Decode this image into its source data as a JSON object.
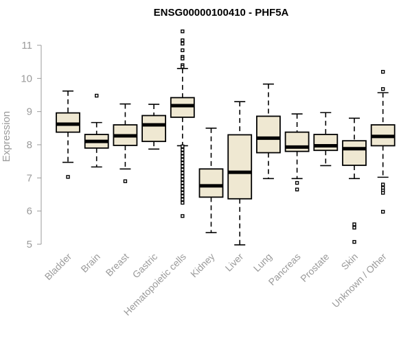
{
  "chart_data": {
    "type": "boxplot",
    "title": "ENSG00000100410 - PHF5A",
    "xlabel": "",
    "ylabel": "Expression",
    "ylim": [
      5,
      11
    ],
    "yticks": [
      5,
      6,
      7,
      8,
      9,
      10,
      11
    ],
    "categories": [
      "Bladder",
      "Brain",
      "Breast",
      "Gastric",
      "Hematopoietic cells",
      "Kidney",
      "Liver",
      "Lung",
      "Pancreas",
      "Prostate",
      "Skin",
      "Unknown / Other"
    ],
    "boxes": [
      {
        "name": "Bladder",
        "whisker_low": 7.47,
        "q1": 8.38,
        "median": 8.62,
        "q3": 8.96,
        "whisker_high": 9.62,
        "outliers": [
          7.03
        ]
      },
      {
        "name": "Brain",
        "whisker_low": 7.33,
        "q1": 7.9,
        "median": 8.1,
        "q3": 8.31,
        "whisker_high": 8.67,
        "outliers": [
          9.48
        ]
      },
      {
        "name": "Breast",
        "whisker_low": 7.27,
        "q1": 7.98,
        "median": 8.27,
        "q3": 8.6,
        "whisker_high": 9.23,
        "outliers": [
          6.9
        ]
      },
      {
        "name": "Gastric",
        "whisker_low": 7.87,
        "q1": 8.1,
        "median": 8.6,
        "q3": 8.88,
        "whisker_high": 9.22,
        "outliers": []
      },
      {
        "name": "Hematopoietic cells",
        "whisker_low": 7.97,
        "q1": 8.83,
        "median": 9.18,
        "q3": 9.42,
        "whisker_high": 10.3,
        "outliers": [
          11.42,
          11.15,
          11.05,
          10.85,
          10.65,
          10.6,
          10.4,
          10.35,
          7.95,
          7.85,
          7.75,
          7.65,
          7.55,
          7.45,
          7.35,
          7.25,
          7.15,
          7.05,
          6.95,
          6.85,
          6.75,
          6.65,
          6.55,
          6.45,
          6.35,
          6.25,
          5.85
        ]
      },
      {
        "name": "Kidney",
        "whisker_low": 5.35,
        "q1": 6.42,
        "median": 6.76,
        "q3": 7.27,
        "whisker_high": 8.5,
        "outliers": []
      },
      {
        "name": "Liver",
        "whisker_low": 4.98,
        "q1": 6.37,
        "median": 7.17,
        "q3": 8.3,
        "whisker_high": 9.3,
        "outliers": []
      },
      {
        "name": "Lung",
        "whisker_low": 6.98,
        "q1": 7.76,
        "median": 8.2,
        "q3": 8.86,
        "whisker_high": 9.83,
        "outliers": []
      },
      {
        "name": "Pancreas",
        "whisker_low": 6.98,
        "q1": 7.8,
        "median": 7.93,
        "q3": 8.38,
        "whisker_high": 8.93,
        "outliers": [
          6.85,
          6.65
        ]
      },
      {
        "name": "Prostate",
        "whisker_low": 7.37,
        "q1": 7.83,
        "median": 7.97,
        "q3": 8.31,
        "whisker_high": 8.97,
        "outliers": []
      },
      {
        "name": "Skin",
        "whisker_low": 6.98,
        "q1": 7.38,
        "median": 7.88,
        "q3": 8.12,
        "whisker_high": 8.8,
        "outliers": [
          5.6,
          5.5,
          5.07
        ]
      },
      {
        "name": "Unknown / Other",
        "whisker_low": 7.02,
        "q1": 7.97,
        "median": 8.25,
        "q3": 8.6,
        "whisker_high": 9.57,
        "outliers": [
          10.2,
          9.68,
          6.8,
          6.7,
          6.62,
          6.55,
          5.98
        ]
      }
    ],
    "box_fill": "#efe8d2",
    "box_stroke": "#000000"
  }
}
